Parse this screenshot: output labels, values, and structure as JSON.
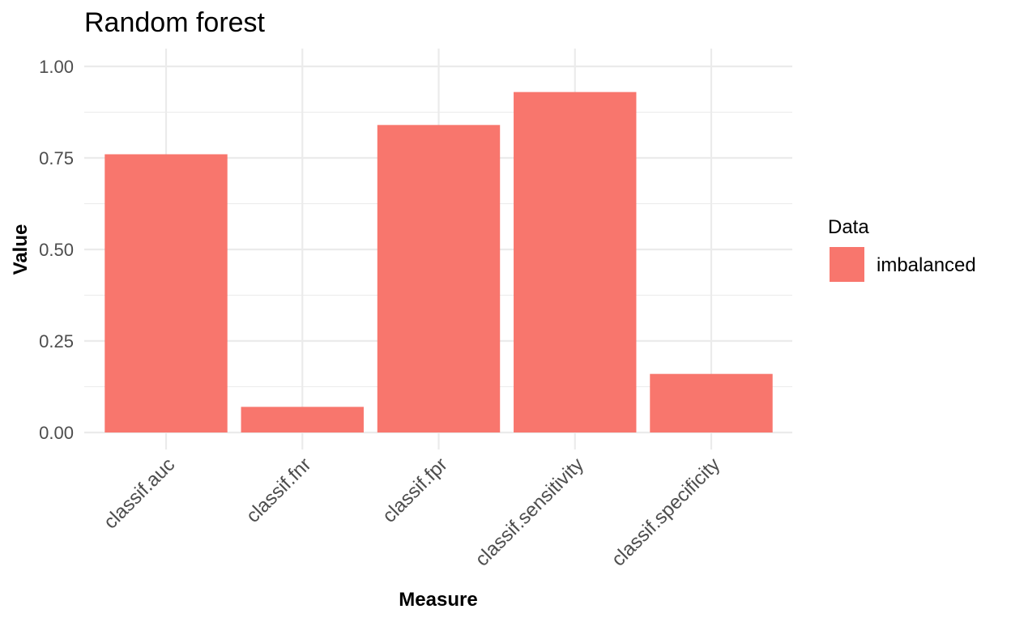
{
  "chart_data": {
    "type": "bar",
    "title": "Random forest",
    "xlabel": "Measure",
    "ylabel": "Value",
    "categories": [
      "classif.auc",
      "classif.fnr",
      "classif.fpr",
      "classif.sensitivity",
      "classif.specificity"
    ],
    "series": [
      {
        "name": "imbalanced",
        "color": "#f8766d",
        "values": [
          0.76,
          0.07,
          0.84,
          0.93,
          0.16
        ]
      }
    ],
    "ylim": [
      0,
      1.0
    ],
    "yticks": [
      "0.00",
      "0.25",
      "0.50",
      "0.75",
      "1.00"
    ],
    "grid": true,
    "legend": {
      "title": "Data",
      "placement": "right"
    }
  }
}
